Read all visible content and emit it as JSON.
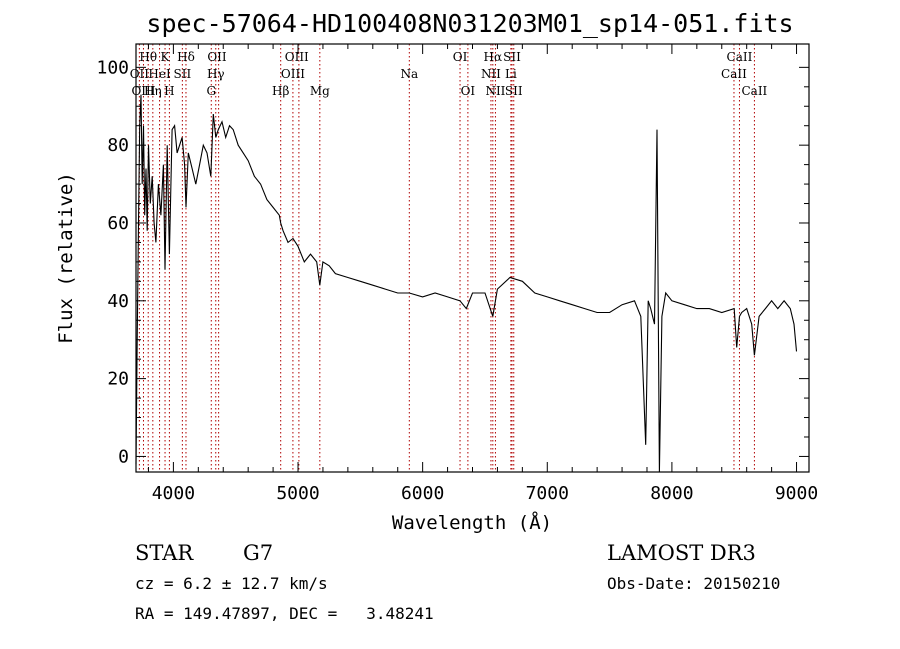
{
  "chart_data": {
    "type": "line",
    "title": "spec-57064-HD100408N031203M01_sp14-051.fits",
    "xlabel": "Wavelength (Å)",
    "ylabel": "Flux (relative)",
    "xlim": [
      3700,
      9100
    ],
    "ylim": [
      -4,
      106
    ],
    "xticks": [
      4000,
      5000,
      6000,
      7000,
      8000,
      9000
    ],
    "yticks": [
      0,
      20,
      40,
      60,
      80,
      100
    ],
    "grid": false,
    "series": [
      {
        "x": [
          3700,
          3710,
          3720,
          3730,
          3740,
          3750,
          3760,
          3770,
          3780,
          3790,
          3800,
          3815,
          3830,
          3845,
          3860,
          3880,
          3900,
          3920,
          3933,
          3950,
          3968,
          3990,
          4010,
          4030,
          4050,
          4070,
          4090,
          4101,
          4120,
          4150,
          4180,
          4210,
          4240,
          4270,
          4300,
          4320,
          4340,
          4360,
          4390,
          4420,
          4450,
          4480,
          4520,
          4560,
          4600,
          4650,
          4700,
          4750,
          4800,
          4850,
          4861,
          4880,
          4920,
          4960,
          5000,
          5050,
          5100,
          5150,
          5175,
          5200,
          5250,
          5300,
          5400,
          5500,
          5600,
          5700,
          5800,
          5893,
          6000,
          6100,
          6200,
          6300,
          6350,
          6400,
          6500,
          6563,
          6600,
          6700,
          6800,
          6900,
          7000,
          7100,
          7200,
          7300,
          7400,
          7500,
          7600,
          7700,
          7750,
          7790,
          7810,
          7830,
          7860,
          7880,
          7900,
          7920,
          7950,
          8000,
          8100,
          8200,
          8300,
          8400,
          8500,
          8520,
          8542,
          8560,
          8600,
          8640,
          8662,
          8700,
          8750,
          8800,
          8850,
          8900,
          8950,
          8980,
          9000
        ],
        "y": [
          -2,
          30,
          60,
          85,
          93,
          70,
          85,
          62,
          74,
          58,
          80,
          65,
          72,
          60,
          55,
          70,
          62,
          75,
          48,
          80,
          52,
          84,
          85,
          78,
          80,
          82,
          75,
          64,
          78,
          74,
          70,
          75,
          80,
          78,
          72,
          88,
          82,
          84,
          86,
          82,
          85,
          84,
          80,
          78,
          76,
          72,
          70,
          66,
          64,
          62,
          60,
          58,
          55,
          56,
          54,
          50,
          52,
          50,
          44,
          50,
          49,
          47,
          46,
          45,
          44,
          43,
          42,
          42,
          41,
          42,
          41,
          40,
          38,
          42,
          42,
          36,
          43,
          46,
          45,
          42,
          41,
          40,
          39,
          38,
          37,
          37,
          39,
          40,
          36,
          3,
          40,
          38,
          34,
          84,
          -4,
          36,
          42,
          40,
          39,
          38,
          38,
          37,
          38,
          28,
          36,
          37,
          38,
          34,
          26,
          36,
          38,
          40,
          38,
          40,
          38,
          34,
          27
        ]
      }
    ],
    "line_labels": [
      {
        "name": "Hθ",
        "x": 3798,
        "row": 1
      },
      {
        "name": "OII",
        "x": 3727,
        "row": 2
      },
      {
        "name": "OIII",
        "x": 3760,
        "row": 3
      },
      {
        "name": "Hη",
        "x": 3835,
        "row": 3
      },
      {
        "name": "K",
        "x": 3933,
        "row": 1
      },
      {
        "name": "HeI",
        "x": 3889,
        "row": 2
      },
      {
        "name": "H",
        "x": 3968,
        "row": 3
      },
      {
        "name": "Hδ",
        "x": 4101,
        "row": 1
      },
      {
        "name": "SII",
        "x": 4072,
        "row": 2
      },
      {
        "name": "OII",
        "x": 4350,
        "row": 1
      },
      {
        "name": "Hγ",
        "x": 4340,
        "row": 2
      },
      {
        "name": "G",
        "x": 4304,
        "row": 3
      },
      {
        "name": "OIII",
        "x": 4990,
        "row": 1
      },
      {
        "name": "OIII",
        "x": 4959,
        "row": 2
      },
      {
        "name": "Hβ",
        "x": 4861,
        "row": 3
      },
      {
        "name": "Mg",
        "x": 5175,
        "row": 3
      },
      {
        "name": "Na",
        "x": 5893,
        "row": 2
      },
      {
        "name": "OI",
        "x": 6300,
        "row": 1
      },
      {
        "name": "OI",
        "x": 6363,
        "row": 3
      },
      {
        "name": "Hα",
        "x": 6563,
        "row": 1
      },
      {
        "name": "NII",
        "x": 6548,
        "row": 2
      },
      {
        "name": "NII",
        "x": 6584,
        "row": 3
      },
      {
        "name": "SII",
        "x": 6717,
        "row": 1
      },
      {
        "name": "Li",
        "x": 6708,
        "row": 2
      },
      {
        "name": "SII",
        "x": 6731,
        "row": 3
      },
      {
        "name": "CaII",
        "x": 8542,
        "row": 1
      },
      {
        "name": "CaII",
        "x": 8498,
        "row": 2
      },
      {
        "name": "CaII",
        "x": 8662,
        "row": 3
      }
    ],
    "marker_lines_x": [
      3727,
      3760,
      3798,
      3835,
      3889,
      3933,
      3968,
      4072,
      4101,
      4304,
      4340,
      4363,
      4861,
      4959,
      5007,
      5175,
      5893,
      6300,
      6363,
      6548,
      6563,
      6584,
      6708,
      6717,
      6731,
      8498,
      8542,
      8662
    ]
  },
  "info": {
    "object_type": "STAR",
    "subclass": "G7",
    "survey": "LAMOST DR3",
    "redshift": "cz = 6.2 ± 12.7 km/s",
    "obs_date": "Obs-Date: 20150210",
    "coords": "RA = 149.47897, DEC =   3.48241"
  }
}
